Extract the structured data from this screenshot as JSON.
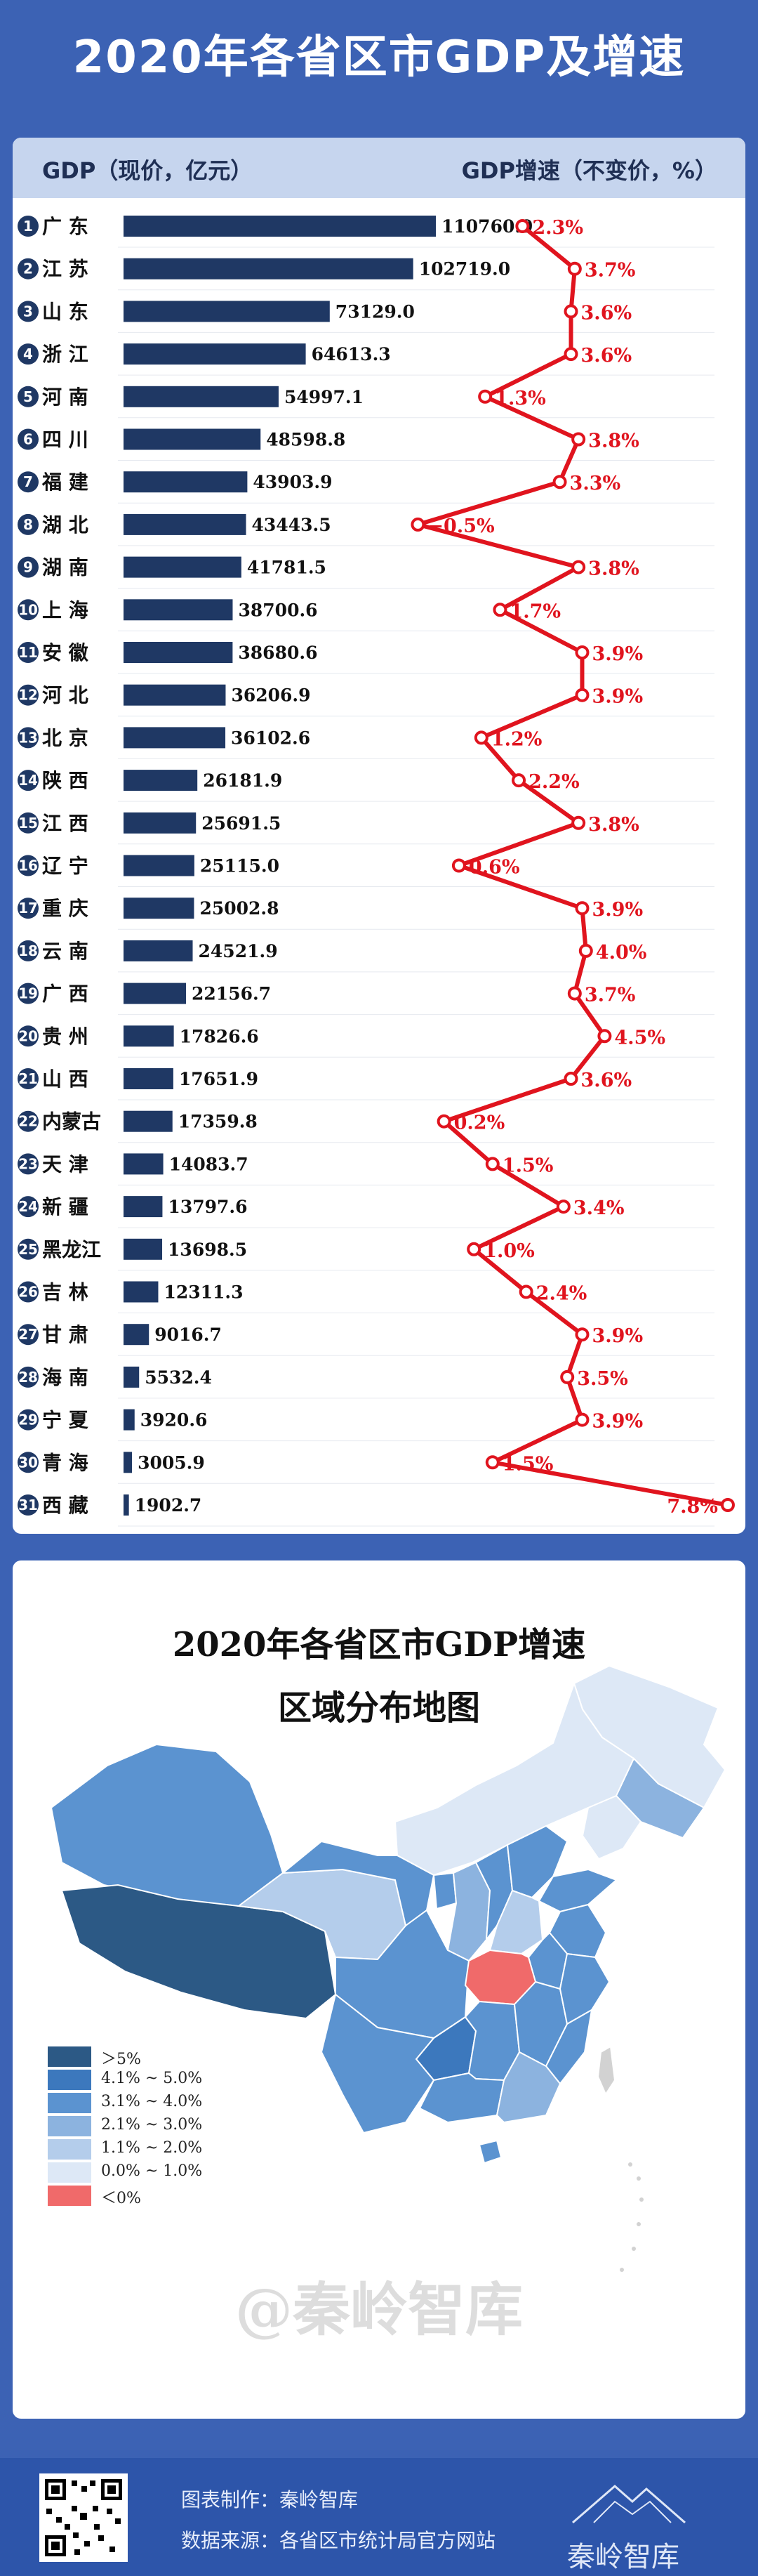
{
  "page_title": "2020年各省区市GDP及增速",
  "chart_header": {
    "gdp_label": "GDP（现价，亿元）",
    "growth_label": "GDP增速（不变价，%）"
  },
  "colors": {
    "page_bg": "#3c62b4",
    "bar": "#1f3864",
    "growth_line": "#e0141e",
    "header_bg": "#c6d5ee"
  },
  "chart_data": [
    {
      "type": "bar",
      "orientation": "horizontal",
      "title": "",
      "xlabel": "GDP（现价，亿元）",
      "categories": [
        "广 东",
        "江 苏",
        "山 东",
        "浙 江",
        "河 南",
        "四 川",
        "福 建",
        "湖 北",
        "湖 南",
        "上 海",
        "安 徽",
        "河 北",
        "北 京",
        "陕 西",
        "江 西",
        "辽 宁",
        "重 庆",
        "云 南",
        "广 西",
        "贵 州",
        "山 西",
        "内蒙古",
        "天 津",
        "新 疆",
        "黑龙江",
        "吉 林",
        "甘 肃",
        "海 南",
        "宁 夏",
        "青 海",
        "西 藏"
      ],
      "ranks": [
        "1",
        "2",
        "3",
        "4",
        "5",
        "6",
        "7",
        "8",
        "9",
        "10",
        "11",
        "12",
        "13",
        "14",
        "15",
        "16",
        "17",
        "18",
        "19",
        "20",
        "21",
        "22",
        "23",
        "24",
        "25",
        "26",
        "27",
        "28",
        "29",
        "30",
        "31"
      ],
      "values": [
        110760.9,
        102719.0,
        73129.0,
        64613.3,
        54997.1,
        48598.8,
        43903.9,
        43443.5,
        41781.5,
        38700.6,
        38680.6,
        36206.9,
        36102.6,
        26181.9,
        25691.5,
        25115.0,
        25002.8,
        24521.9,
        22156.7,
        17826.6,
        17651.9,
        17359.8,
        14083.7,
        13797.6,
        13698.5,
        12311.3,
        9016.7,
        5532.4,
        3920.6,
        3005.9,
        1902.7
      ],
      "value_labels": [
        "110760.9",
        "102719.0",
        "73129.0",
        "64613.3",
        "54997.1",
        "48598.8",
        "43903.9",
        "43443.5",
        "41781.5",
        "38700.6",
        "38680.6",
        "36206.9",
        "36102.6",
        "26181.9",
        "25691.5",
        "25115.0",
        "25002.8",
        "24521.9",
        "22156.7",
        "17826.6",
        "17651.9",
        "17359.8",
        "14083.7",
        "13797.6",
        "13698.5",
        "12311.3",
        "9016.7",
        "5532.4",
        "3920.6",
        "3005.9",
        "1902.7"
      ]
    },
    {
      "type": "line",
      "title": "",
      "xlabel": "GDP增速（不变价，%）",
      "categories": [
        "广 东",
        "江 苏",
        "山 东",
        "浙 江",
        "河 南",
        "四 川",
        "福 建",
        "湖 北",
        "湖 南",
        "上 海",
        "安 徽",
        "河 北",
        "北 京",
        "陕 西",
        "江 西",
        "辽 宁",
        "重 庆",
        "云 南",
        "广 西",
        "贵 州",
        "山 西",
        "内蒙古",
        "天 津",
        "新 疆",
        "黑龙江",
        "吉 林",
        "甘 肃",
        "海 南",
        "宁 夏",
        "青 海",
        "西 藏"
      ],
      "values": [
        2.3,
        3.7,
        3.6,
        3.6,
        1.3,
        3.8,
        3.3,
        -0.5,
        3.8,
        1.7,
        3.9,
        3.9,
        1.2,
        2.2,
        3.8,
        0.6,
        3.9,
        4.0,
        3.7,
        4.5,
        3.6,
        0.2,
        1.5,
        3.4,
        1.0,
        2.4,
        3.9,
        3.5,
        3.9,
        1.5,
        7.8
      ],
      "value_labels": [
        "2.3%",
        "3.7%",
        "3.6%",
        "3.6%",
        "1.3%",
        "3.8%",
        "3.3%",
        "−0.5%",
        "3.8%",
        "1.7%",
        "3.9%",
        "3.9%",
        "1.2%",
        "2.2%",
        "3.8%",
        "0.6%",
        "3.9%",
        "4.0%",
        "3.7%",
        "4.5%",
        "3.6%",
        "0.2%",
        "1.5%",
        "3.4%",
        "1.0%",
        "2.4%",
        "3.9%",
        "3.5%",
        "3.9%",
        "1.5%",
        "7.8%"
      ]
    }
  ],
  "map": {
    "title_line1": "2020年各省区市GDP增速",
    "title_line2": "区域分布地图",
    "legend": [
      {
        "label": "＞5%",
        "color": "#2c5985"
      },
      {
        "label": "4.1% ~ 5.0%",
        "color": "#3c78bd"
      },
      {
        "label": "3.1% ~ 4.0%",
        "color": "#5b93d0"
      },
      {
        "label": "2.1% ~ 3.0%",
        "color": "#8cb3df"
      },
      {
        "label": "1.1% ~ 2.0%",
        "color": "#b4cdeb"
      },
      {
        "label": "0.0% ~ 1.0%",
        "color": "#dde8f6"
      },
      {
        "label": "＜0%",
        "color": "#f06a6a"
      }
    ],
    "watermark": "@秦岭智库"
  },
  "footer": {
    "maker_label": "图表制作：秦岭智库",
    "source_label": "数据来源：各省区市统计局官方网站",
    "brand": "秦岭智库"
  }
}
